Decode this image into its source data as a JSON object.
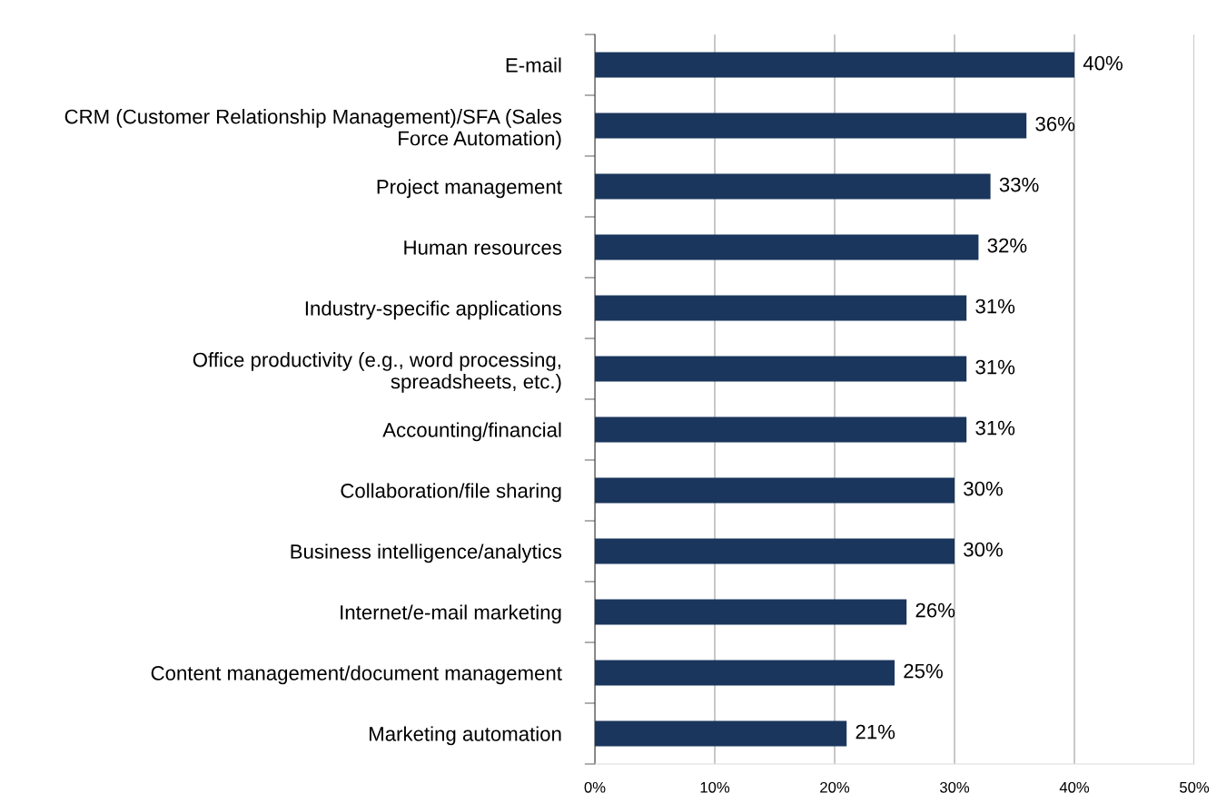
{
  "chart_data": {
    "type": "bar",
    "orientation": "horizontal",
    "categories": [
      "E-mail",
      "CRM (Customer Relationship Management)/SFA (Sales\nForce Automation)",
      "Project management",
      "Human resources",
      "Industry-specific applications",
      "Office productivity (e.g., word processing,\nspreadsheets, etc.)",
      "Accounting/financial",
      "Collaboration/file sharing",
      "Business intelligence/analytics",
      "Internet/e-mail marketing",
      "Content management/document management",
      "Marketing automation"
    ],
    "values": [
      40,
      36,
      33,
      32,
      31,
      31,
      31,
      30,
      30,
      26,
      25,
      21
    ],
    "value_labels": [
      "40%",
      "36%",
      "33%",
      "32%",
      "31%",
      "31%",
      "31%",
      "30%",
      "30%",
      "26%",
      "25%",
      "21%"
    ],
    "color": "#1b365d",
    "xlim": [
      0,
      50
    ],
    "xticks": [
      {
        "value": 0,
        "label": "0%"
      },
      {
        "value": 10,
        "label": "10%"
      },
      {
        "value": 20,
        "label": "20%"
      },
      {
        "value": 30,
        "label": "30%"
      },
      {
        "value": 40,
        "label": "40%"
      },
      {
        "value": 50,
        "label": "50%"
      }
    ],
    "grid": "x",
    "legend": false
  }
}
